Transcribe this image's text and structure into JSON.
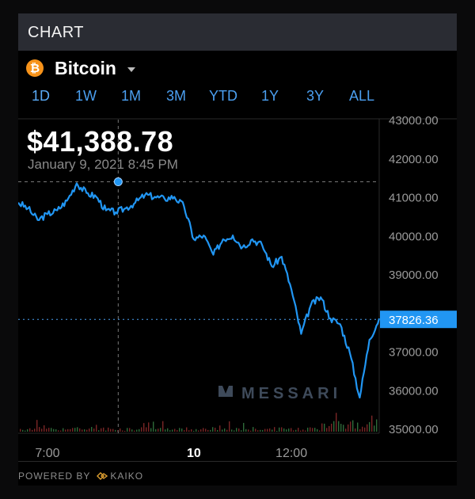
{
  "header": {
    "title": "CHART"
  },
  "asset": {
    "name": "Bitcoin",
    "icon": "bitcoin-icon",
    "icon_glyph": "₿",
    "icon_color": "#f7931a"
  },
  "tabs": [
    {
      "label": "1D",
      "active": true
    },
    {
      "label": "1W",
      "active": false
    },
    {
      "label": "1M",
      "active": false
    },
    {
      "label": "3M",
      "active": false
    },
    {
      "label": "YTD",
      "active": false
    },
    {
      "label": "1Y",
      "active": false
    },
    {
      "label": "3Y",
      "active": false
    },
    {
      "label": "ALL",
      "active": false
    }
  ],
  "hover": {
    "price": "$41,388.78",
    "date": "January 9, 2021 8:45 PM"
  },
  "watermark": "MESSARI",
  "footer": {
    "powered_by": "POWERED BY",
    "provider": "KAIKO"
  },
  "colors": {
    "line": "#2196f3",
    "accent": "#4b9ff0",
    "current_price_bg": "#2196f3"
  },
  "chart_data": {
    "type": "line",
    "series": [
      {
        "x": [
          6.4,
          6.6,
          6.8,
          7.0,
          7.2,
          7.4,
          7.6,
          7.8,
          8.0,
          8.2,
          8.4,
          8.6,
          8.8,
          9.0,
          9.2,
          9.4,
          9.6,
          9.8,
          10.0,
          10.2,
          10.4,
          10.6,
          10.8,
          11.0,
          11.2,
          11.4,
          11.6,
          11.8,
          12.0,
          12.2,
          12.4,
          12.6,
          12.8,
          13.0,
          13.2,
          13.4,
          13.6,
          13.8
        ],
        "y": [
          40850,
          40700,
          40400,
          40550,
          40650,
          40900,
          41350,
          41100,
          41000,
          40650,
          40600,
          40700,
          40850,
          41050,
          41000,
          40950,
          41000,
          40750,
          39900,
          40000,
          39500,
          39900,
          40000,
          39700,
          39900,
          39750,
          39200,
          39450,
          38600,
          37450,
          38200,
          38400,
          37850,
          37700,
          36950,
          35800,
          37300,
          37850
        ]
      }
    ],
    "ylim": [
      35000,
      43000
    ],
    "yticks": [
      "43000.00",
      "42000.00",
      "41000.00",
      "40000.00",
      "39000.00",
      "37000.00",
      "36000.00",
      "35000.00"
    ],
    "ytick_values": [
      43000,
      42000,
      41000,
      40000,
      39000,
      37000,
      36000,
      35000
    ],
    "xticks": [
      "7:00",
      "10",
      "12:00"
    ],
    "xtick_values": [
      7.0,
      10.0,
      12.0
    ],
    "current_price": "37826.36",
    "current_price_value": 37826.36,
    "hover_x": 8.45,
    "hover_y": 41388.78
  }
}
